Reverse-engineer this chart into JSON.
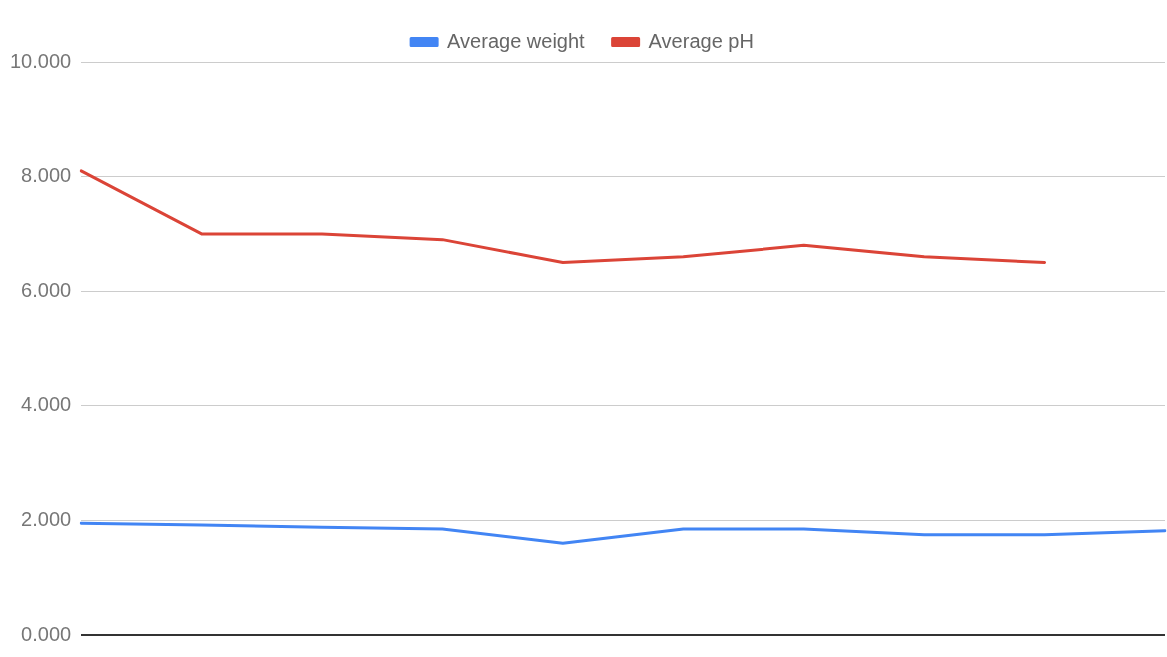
{
  "chart_data": {
    "type": "line",
    "categories": [
      null,
      null,
      null,
      null,
      null,
      null,
      null,
      null,
      null,
      null
    ],
    "series": [
      {
        "name": "Average weight",
        "color": "#4285f4",
        "values": [
          1.95,
          1.92,
          1.88,
          1.85,
          1.6,
          1.85,
          1.85,
          1.75,
          1.75,
          1.82
        ]
      },
      {
        "name": "Average pH",
        "color": "#db4437",
        "values": [
          8.1,
          7.0,
          7.0,
          6.9,
          6.5,
          6.6,
          6.8,
          6.6,
          6.5,
          null
        ]
      }
    ],
    "ylim": [
      0,
      10
    ],
    "yticks": [
      {
        "value": 0,
        "label": "0.000"
      },
      {
        "value": 2,
        "label": "2.000"
      },
      {
        "value": 4,
        "label": "4.000"
      },
      {
        "value": 6,
        "label": "6.000"
      },
      {
        "value": 8,
        "label": "8.000"
      },
      {
        "value": 10,
        "label": "10.000"
      }
    ],
    "grid": "y",
    "legend": "top",
    "tick_labels": "y",
    "marker": "none"
  }
}
